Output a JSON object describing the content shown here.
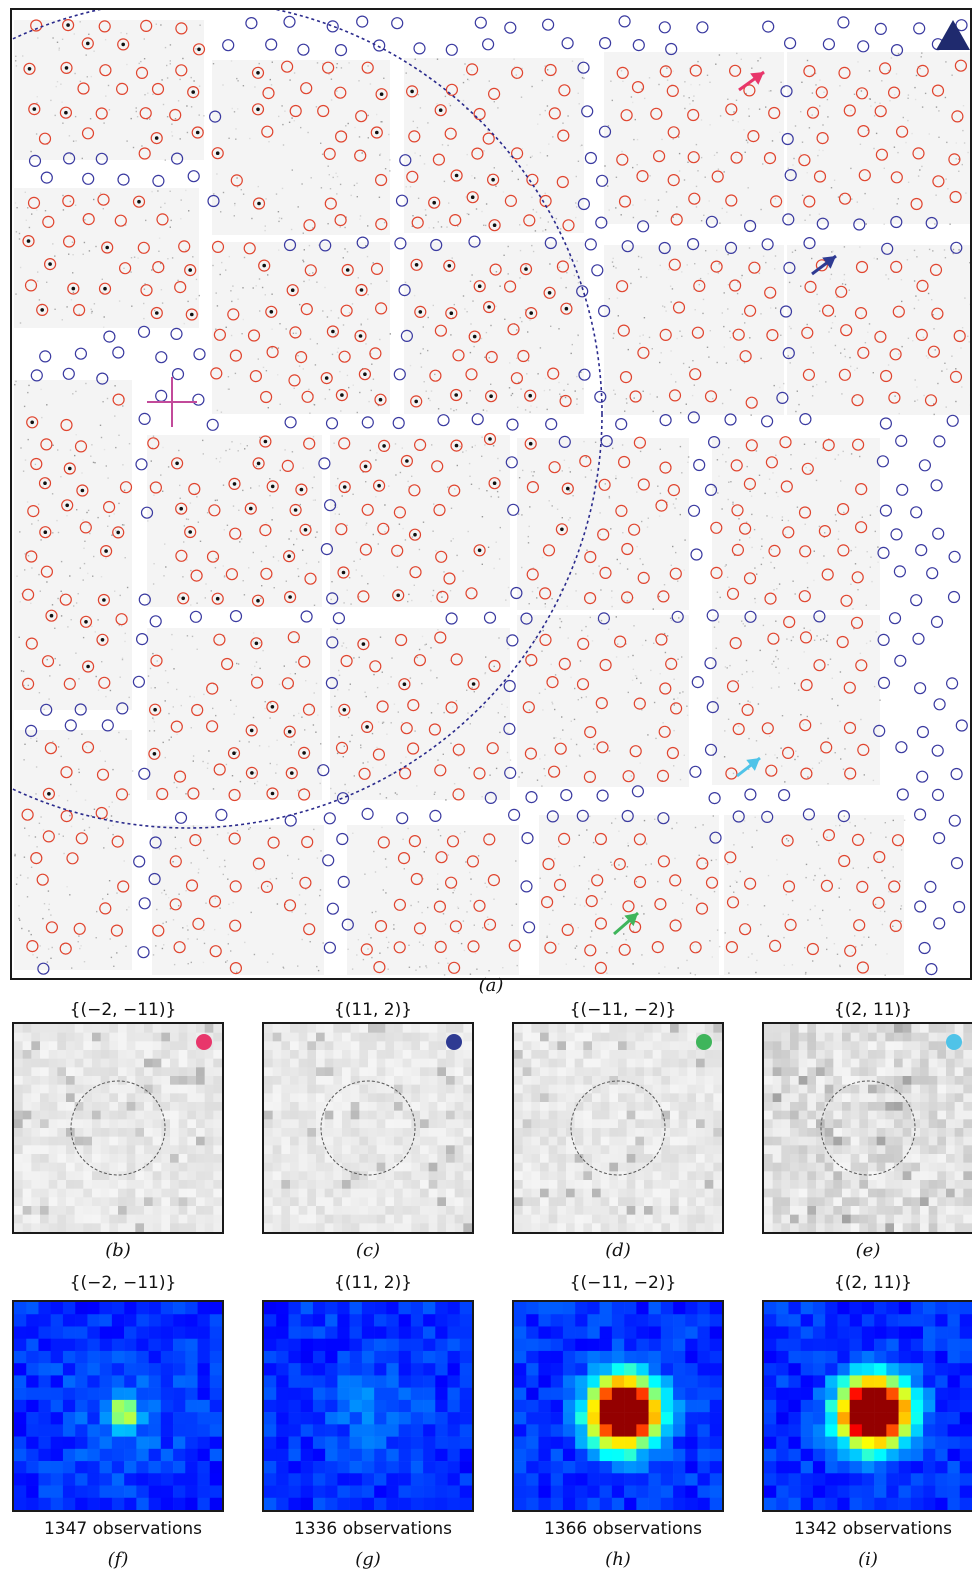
{
  "figure": {
    "main_caption": "(a)",
    "mid_row": [
      {
        "id": "b",
        "title": "{(−2, −11)}",
        "caption": "(b)",
        "dot_color": "#e8366b"
      },
      {
        "id": "c",
        "title": "{(11, 2)}",
        "caption": "(c)",
        "dot_color": "#2e3a92"
      },
      {
        "id": "d",
        "title": "{(−11, −2)}",
        "caption": "(d)",
        "dot_color": "#3fb55b"
      },
      {
        "id": "e",
        "title": "{(2, 11)}",
        "caption": "(e)",
        "dot_color": "#4fc3e8"
      }
    ],
    "bottom_row": [
      {
        "id": "f",
        "title": "{(−2, −11)}",
        "observations": "1347 observations",
        "caption": "(f)",
        "peak": 0.35
      },
      {
        "id": "g",
        "title": "{(11, 2)}",
        "observations": "1336 observations",
        "caption": "(g)",
        "peak": 0.05
      },
      {
        "id": "h",
        "title": "{(−11, −2)}",
        "observations": "1366 observations",
        "caption": "(h)",
        "peak": 1.0
      },
      {
        "id": "i",
        "title": "{(2, 11)}",
        "observations": "1342 observations",
        "caption": "(i)",
        "peak": 1.0
      }
    ],
    "colors": {
      "circle_red": "#e0452f",
      "circle_blue": "#3a3aa0",
      "dashed_ring": "#2a2a8c",
      "triangle": "#1f2a6e",
      "crosshair": "#c24a9a",
      "arrow_pink": "#e8366b",
      "arrow_navy": "#2e3a92",
      "arrow_cyan": "#4fc3e8",
      "arrow_green": "#3fb55b"
    },
    "icons": [
      "triangle-icon",
      "crosshair-icon",
      "arrow-icon"
    ]
  }
}
